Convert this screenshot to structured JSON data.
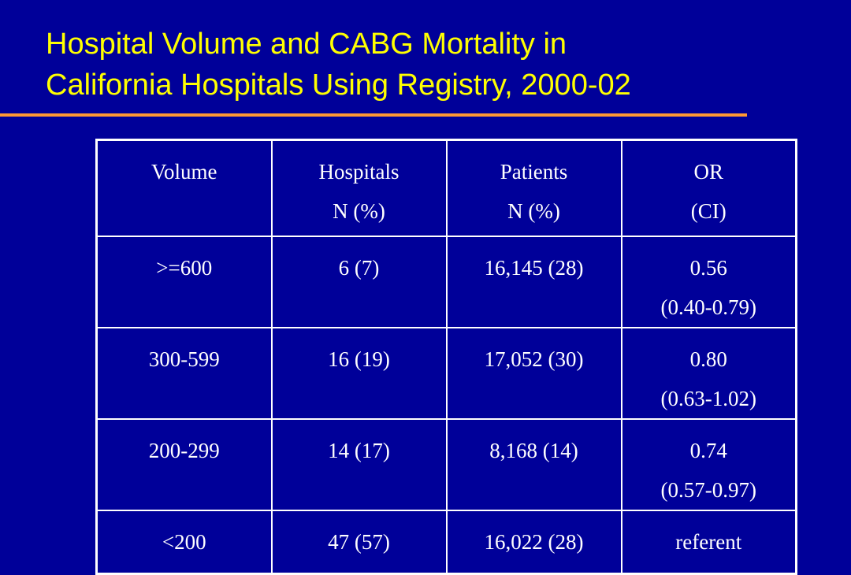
{
  "title": {
    "line1": "Hospital Volume and CABG Mortality in",
    "line2": "California Hospitals Using Registry, 2000-02"
  },
  "colors": {
    "background": "#000099",
    "title": "#ffff00",
    "rule": "#ff9933",
    "table_text": "#ffffff"
  },
  "table": {
    "headers": [
      {
        "line1": "Volume",
        "line2": ""
      },
      {
        "line1": "Hospitals",
        "line2": "N (%)"
      },
      {
        "line1": "Patients",
        "line2": "N (%)"
      },
      {
        "line1": "OR",
        "line2": "(CI)"
      }
    ],
    "rows": [
      {
        "volume": ">=600",
        "hospitals": "6 (7)",
        "patients": "16,145 (28)",
        "or": "0.56",
        "ci": "(0.40-0.79)"
      },
      {
        "volume": "300-599",
        "hospitals": "16 (19)",
        "patients": "17,052 (30)",
        "or": "0.80",
        "ci": "(0.63-1.02)"
      },
      {
        "volume": "200-299",
        "hospitals": "14 (17)",
        "patients": "8,168 (14)",
        "or": "0.74",
        "ci": "(0.57-0.97)"
      },
      {
        "volume": "<200",
        "hospitals": "47 (57)",
        "patients": "16,022 (28)",
        "or": "referent",
        "ci": ""
      }
    ]
  }
}
